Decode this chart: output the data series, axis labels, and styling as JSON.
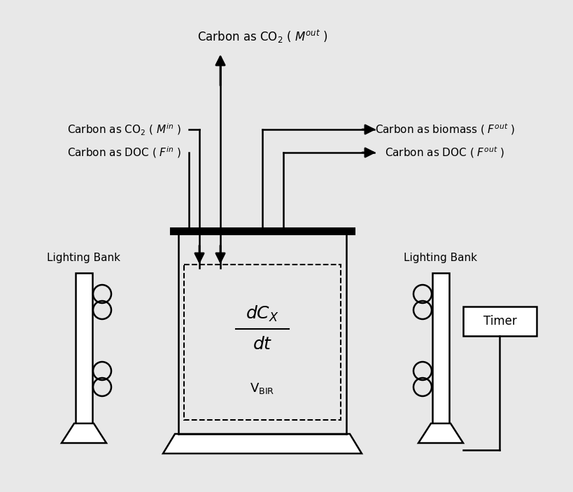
{
  "bg_color": "#e8e8e8",
  "fig_width": 8.2,
  "fig_height": 7.03,
  "dpi": 100,
  "label_co2_out": "Carbon as CO$_2$ ( $M^{out}$ )",
  "label_co2_in": "Carbon as CO$_2$ ( $M^{in}$ )",
  "label_doc_in": "Carbon as DOC ( $F^{in}$ )",
  "label_biomass_out": "Carbon as biomass ( $F^{out}$ )",
  "label_doc_out": "Carbon as DOC ( $F^{out}$ )",
  "label_lighting_left": "Lighting Bank",
  "label_lighting_right": "Lighting Bank",
  "label_timer": "Timer",
  "label_dCx": "$dC_X$",
  "label_dt": "$dt$",
  "label_VBIR": "V$_{\\mathrm{BIR}}$"
}
